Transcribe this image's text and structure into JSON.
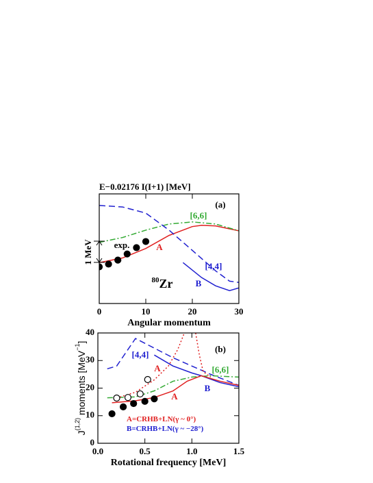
{
  "chart_data": [
    {
      "type": "line",
      "title": "E−0.02176 I(I+1) [MeV]",
      "xlabel": "Angular momentum",
      "xlim": [
        0,
        30
      ],
      "xticks": [
        0,
        10,
        20,
        30
      ],
      "ylim": [
        0,
        5.2
      ],
      "annotations": [
        {
          "text": "(a)",
          "color": "#000000"
        },
        {
          "text": "[6,6]",
          "color": "#33aa33"
        },
        {
          "text": "A",
          "color": "#e02020"
        },
        {
          "text": "exp.",
          "color": "#000000"
        },
        {
          "text": "1 MeV",
          "color": "#000000"
        },
        {
          "text": "[4,4]",
          "color": "#2020d0"
        },
        {
          "text": "B",
          "color": "#2020d0"
        },
        {
          "sup": "80",
          "text": "Zr",
          "color": "#000000"
        }
      ],
      "series": [
        {
          "color": "#e02020",
          "style": "solid",
          "x": [
            0,
            5,
            10,
            15,
            20,
            22,
            25,
            30
          ],
          "values": [
            1.94,
            2.16,
            2.61,
            3.23,
            3.65,
            3.71,
            3.68,
            3.45
          ]
        },
        {
          "color": "#33aa33",
          "style": "dashdot",
          "x": [
            0,
            5,
            10,
            15,
            20,
            25,
            30
          ],
          "values": [
            2.9,
            3.13,
            3.48,
            3.77,
            3.87,
            3.77,
            3.45
          ]
        },
        {
          "color": "#2020d0",
          "style": "dashed",
          "x": [
            0,
            5,
            10,
            15,
            20,
            25,
            28,
            30
          ],
          "values": [
            4.65,
            4.58,
            4.29,
            3.48,
            2.52,
            1.55,
            1.06,
            1.0
          ]
        },
        {
          "color": "#2020d0",
          "style": "solid",
          "x": [
            18,
            22,
            25,
            28,
            30
          ],
          "values": [
            1.94,
            1.23,
            0.84,
            0.61,
            0.74
          ]
        },
        {
          "color": "#000000",
          "style": "filled",
          "x": [
            0,
            2,
            4,
            6,
            8,
            10
          ],
          "values": [
            1.74,
            1.87,
            2.06,
            2.35,
            2.65,
            2.94
          ]
        }
      ]
    },
    {
      "type": "line",
      "xlabel": "Rotational frequency  [MeV]",
      "ylabel": {
        "main": "J",
        "sup": "(1,2)",
        "rest": " moments [MeV",
        "sup2": "−1",
        "end": "]"
      },
      "xlim": [
        0,
        1.5
      ],
      "xticks": [
        {
          "value": 0,
          "label": "0.0"
        },
        0.5,
        {
          "value": 1,
          "label": "1.0"
        },
        1.5
      ],
      "ylim": [
        0,
        40
      ],
      "yticks": [
        0,
        10,
        20,
        30,
        40
      ],
      "annotations": [
        {
          "text": "(b)",
          "color": "#000000"
        },
        {
          "text": "[4,4]",
          "color": "#2020d0"
        },
        {
          "text": "A",
          "color": "#e02020"
        },
        {
          "text": "A",
          "color": "#e02020"
        },
        {
          "text": "[6,6]",
          "color": "#33aa33"
        },
        {
          "text": "B",
          "color": "#2020d0"
        },
        {
          "text": "A=CRHB+LN(γ ~ 0°)",
          "color": "#e02020"
        },
        {
          "text": "B=CRHB+LN(γ ~ −28°)",
          "color": "#2020d0"
        }
      ],
      "series": [
        {
          "color": "#2020d0",
          "style": "dashed",
          "x": [
            0.1,
            0.2,
            0.3,
            0.4,
            0.6,
            0.8,
            1.0,
            1.2,
            1.5
          ],
          "values": [
            27,
            28,
            33,
            38,
            34.5,
            31,
            28,
            25,
            21
          ]
        },
        {
          "color": "#2020d0",
          "style": "solid",
          "x": [
            0.6,
            0.8,
            1.0,
            1.1,
            1.3,
            1.5
          ],
          "values": [
            32,
            28,
            25.5,
            24.5,
            22,
            20.5
          ]
        },
        {
          "color": "#33aa33",
          "style": "dashdot",
          "x": [
            0.1,
            0.4,
            0.6,
            0.8,
            1.0,
            1.2,
            1.5
          ],
          "values": [
            16.5,
            16.8,
            19,
            22.5,
            24,
            24.5,
            24
          ]
        },
        {
          "color": "#e02020",
          "style": "solid",
          "x": [
            0.15,
            0.4,
            0.6,
            0.8,
            0.95,
            1.1,
            1.3,
            1.5
          ],
          "values": [
            14.7,
            15.4,
            16.6,
            19,
            22.5,
            24.5,
            22.5,
            21
          ]
        },
        {
          "color": "#e02020",
          "style": "dotted",
          "x": [
            0.2,
            0.4,
            0.6,
            0.75,
            0.85,
            0.92,
            null,
            1.04,
            1.08,
            1.12,
            1.2
          ],
          "values": [
            16.4,
            18.5,
            23,
            28,
            34,
            40,
            null,
            40,
            32,
            26,
            24
          ]
        },
        {
          "color": "#000000",
          "style": "filled",
          "x": [
            0.15,
            0.27,
            0.38,
            0.5,
            0.6
          ],
          "values": [
            10.7,
            13.2,
            14.4,
            15.2,
            16.1
          ]
        },
        {
          "color": "#000000",
          "style": "open",
          "x": [
            0.2,
            0.32,
            0.45,
            0.53
          ],
          "values": [
            16.4,
            16.6,
            17.9,
            23.1
          ]
        }
      ]
    }
  ]
}
